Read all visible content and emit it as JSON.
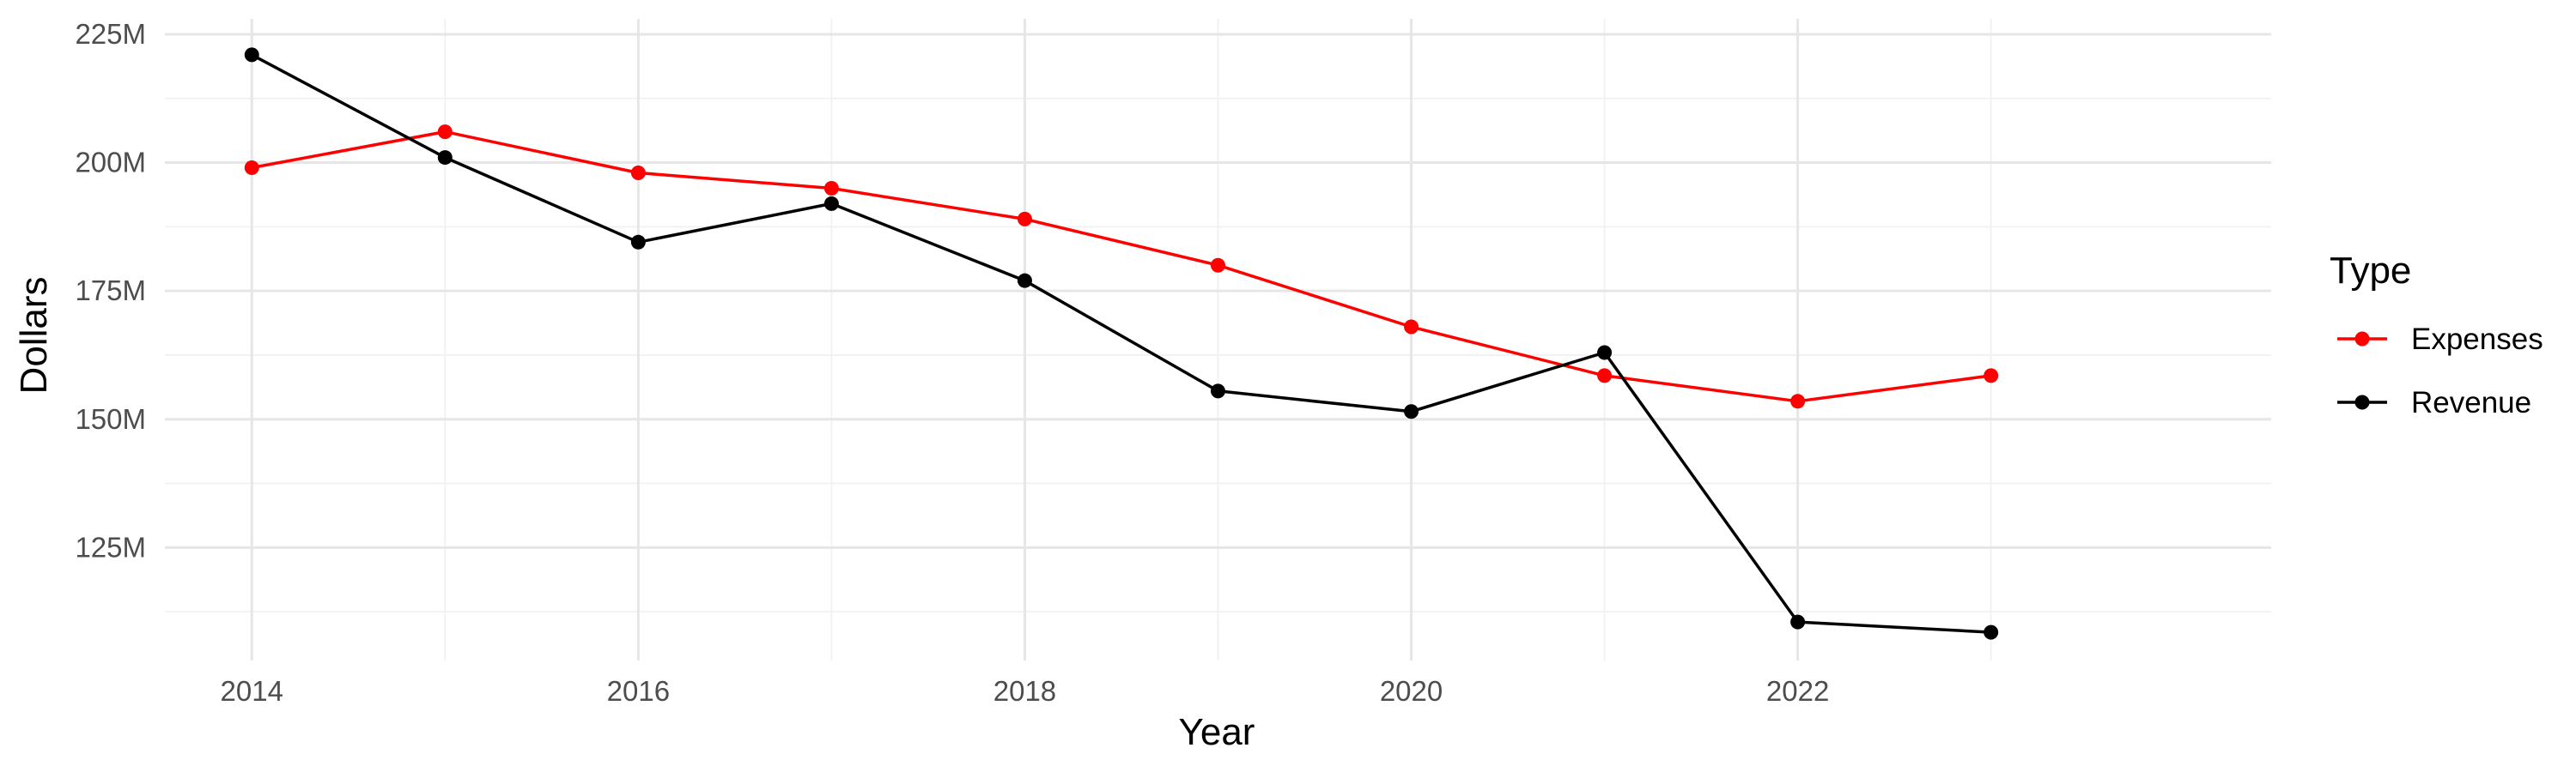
{
  "chart_data": {
    "type": "line",
    "title": "",
    "xlabel": "Year",
    "ylabel": "Dollars",
    "x": [
      2014,
      2015,
      2016,
      2017,
      2018,
      2019,
      2020,
      2021,
      2022,
      2023
    ],
    "x_ticks": [
      2014,
      2016,
      2018,
      2020,
      2022
    ],
    "x_tick_labels": [
      "2014",
      "2016",
      "2018",
      "2020",
      "2022"
    ],
    "xlim": [
      2013.55,
      2024.45
    ],
    "ylim": [
      103000000,
      228000000
    ],
    "y_ticks": [
      125000000,
      150000000,
      175000000,
      200000000,
      225000000
    ],
    "y_tick_labels": [
      "125M",
      "150M",
      "175M",
      "200M",
      "225M"
    ],
    "grid": true,
    "legend": {
      "title": "Type",
      "placement": "right"
    },
    "series": [
      {
        "name": "Expenses",
        "color": "#ff0000",
        "values": [
          199000000,
          206000000,
          198000000,
          195000000,
          189000000,
          180000000,
          168000000,
          158500000,
          153500000,
          158500000
        ]
      },
      {
        "name": "Revenue",
        "color": "#000000",
        "values": [
          221000000,
          201000000,
          184500000,
          192000000,
          177000000,
          155500000,
          151500000,
          163000000,
          110500000,
          108500000
        ]
      }
    ]
  }
}
